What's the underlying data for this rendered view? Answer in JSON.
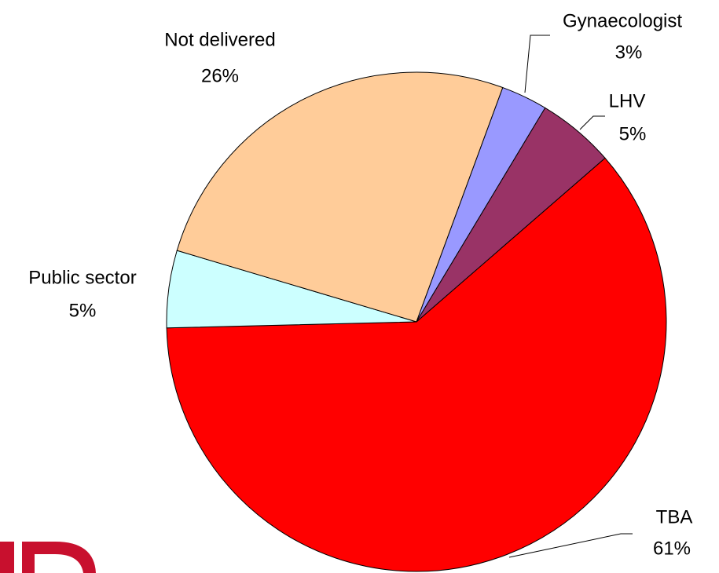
{
  "chart_data": {
    "type": "pie",
    "categories": [
      "TBA",
      "Public sector",
      "Not delivered",
      "Gynaecologist",
      "LHV"
    ],
    "values": [
      61,
      5,
      26,
      3,
      5
    ],
    "value_labels": [
      "61%",
      "5%",
      "26%",
      "3%",
      "5%"
    ],
    "colors": [
      "#ff0000",
      "#ccffff",
      "#ffcc99",
      "#9999ff",
      "#993366"
    ]
  }
}
